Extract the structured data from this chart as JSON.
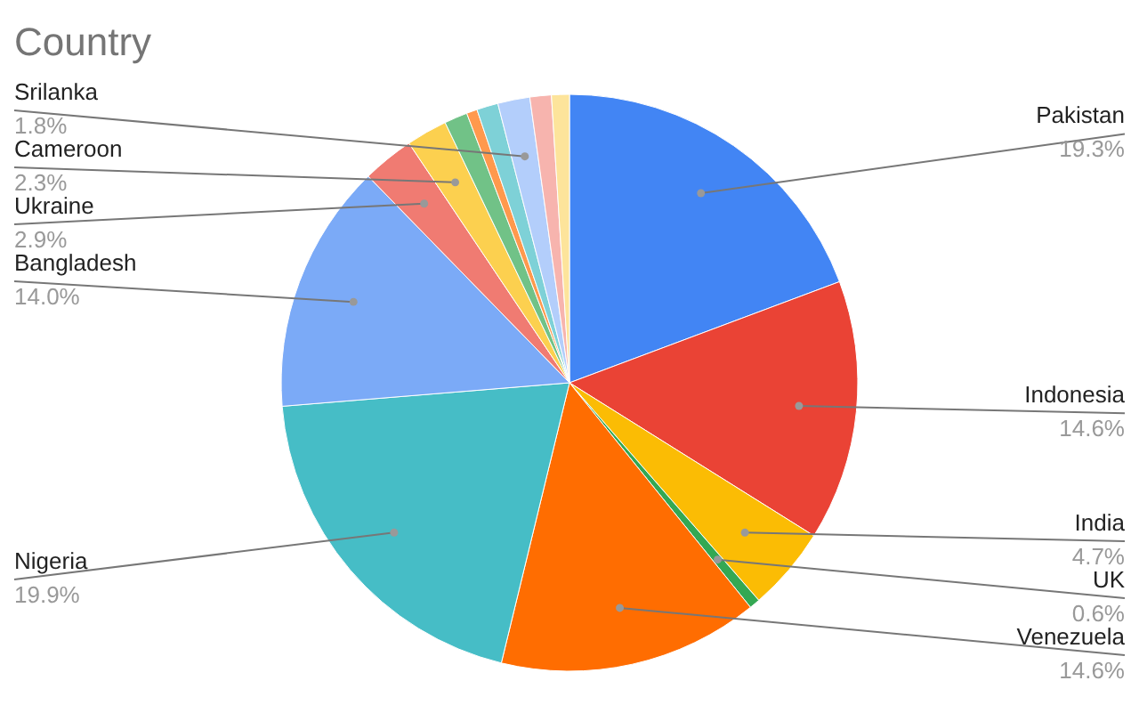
{
  "chart_data": {
    "type": "pie",
    "title": "Country",
    "categories": [
      "Pakistan",
      "Indonesia",
      "India",
      "UK",
      "Venezuela",
      "Nigeria",
      "Bangladesh",
      "Ukraine",
      "Cameroon",
      null,
      null,
      null,
      "Srilanka",
      null,
      null
    ],
    "values": [
      19.3,
      14.6,
      4.7,
      0.6,
      14.6,
      19.9,
      14.0,
      2.9,
      2.3,
      1.3,
      0.6,
      1.2,
      1.8,
      1.2,
      1.0
    ],
    "value_labels": [
      "19.3%",
      "14.6%",
      "4.7%",
      "0.6%",
      "14.6%",
      "19.9%",
      "14.0%",
      "2.9%",
      "2.3%",
      null,
      null,
      null,
      "1.8%",
      null,
      null
    ],
    "colors": [
      "#4285f4",
      "#ea4335",
      "#fbbc04",
      "#34a853",
      "#ff6d01",
      "#46bdc6",
      "#7baaf7",
      "#f07b72",
      "#fcd04f",
      "#71c287",
      "#ff994d",
      "#7ed1d7",
      "#b3cefb",
      "#f7b4ae",
      "#fde49b"
    ]
  }
}
